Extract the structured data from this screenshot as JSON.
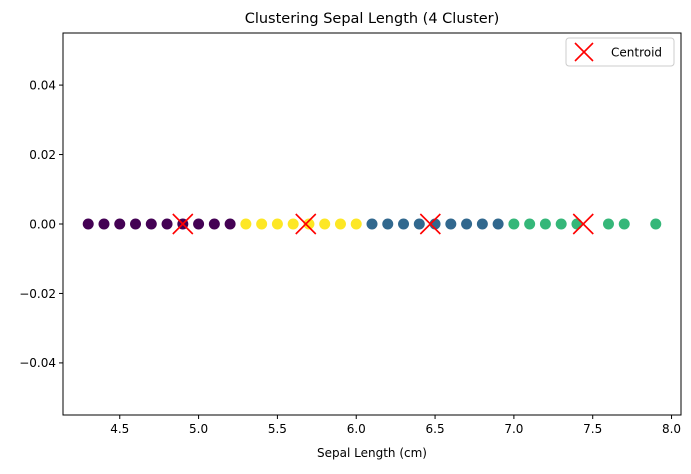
{
  "colors": {
    "cluster_purple": "#440154",
    "cluster_blue": "#31688e",
    "cluster_green": "#35b779",
    "cluster_yellow": "#fde725",
    "centroid": "#ff0000"
  },
  "chart_data": {
    "type": "scatter",
    "title": "Clustering Sepal Length (4 Cluster)",
    "xlabel": "Sepal Length (cm)",
    "ylabel": "",
    "xlim": [
      4.14,
      8.06
    ],
    "ylim": [
      -0.055,
      0.055
    ],
    "x_ticks": [
      4.5,
      5.0,
      5.5,
      6.0,
      6.5,
      7.0,
      7.5,
      8.0
    ],
    "x_tick_labels": [
      "4.5",
      "5.0",
      "5.5",
      "6.0",
      "6.5",
      "7.0",
      "7.5",
      "8.0"
    ],
    "y_ticks": [
      -0.04,
      -0.02,
      0.0,
      0.02,
      0.04
    ],
    "y_tick_labels": [
      "−0.04",
      "−0.02",
      "0.00",
      "0.02",
      "0.04"
    ],
    "grid": false,
    "legend": {
      "position": "top-right",
      "entries": [
        "Centroid"
      ]
    },
    "series": [
      {
        "color": "#440154",
        "x": [
          4.3,
          4.4,
          4.5,
          4.6,
          4.7,
          4.8,
          4.9,
          5.0,
          5.1,
          5.2
        ],
        "y": [
          0,
          0,
          0,
          0,
          0,
          0,
          0,
          0,
          0,
          0
        ]
      },
      {
        "color": "#fde725",
        "x": [
          5.3,
          5.4,
          5.5,
          5.6,
          5.7,
          5.8,
          5.9,
          6.0
        ],
        "y": [
          0,
          0,
          0,
          0,
          0,
          0,
          0,
          0
        ]
      },
      {
        "color": "#31688e",
        "x": [
          6.1,
          6.2,
          6.3,
          6.4,
          6.5,
          6.6,
          6.7,
          6.8,
          6.9
        ],
        "y": [
          0,
          0,
          0,
          0,
          0,
          0,
          0,
          0,
          0
        ]
      },
      {
        "color": "#35b779",
        "x": [
          7.0,
          7.1,
          7.2,
          7.3,
          7.4,
          7.6,
          7.7,
          7.9
        ],
        "y": [
          0,
          0,
          0,
          0,
          0,
          0,
          0,
          0
        ]
      },
      {
        "name": "Centroid",
        "marker": "x",
        "color": "#ff0000",
        "x": [
          4.9,
          5.68,
          6.47,
          7.44
        ],
        "y": [
          0,
          0,
          0,
          0
        ]
      }
    ]
  }
}
